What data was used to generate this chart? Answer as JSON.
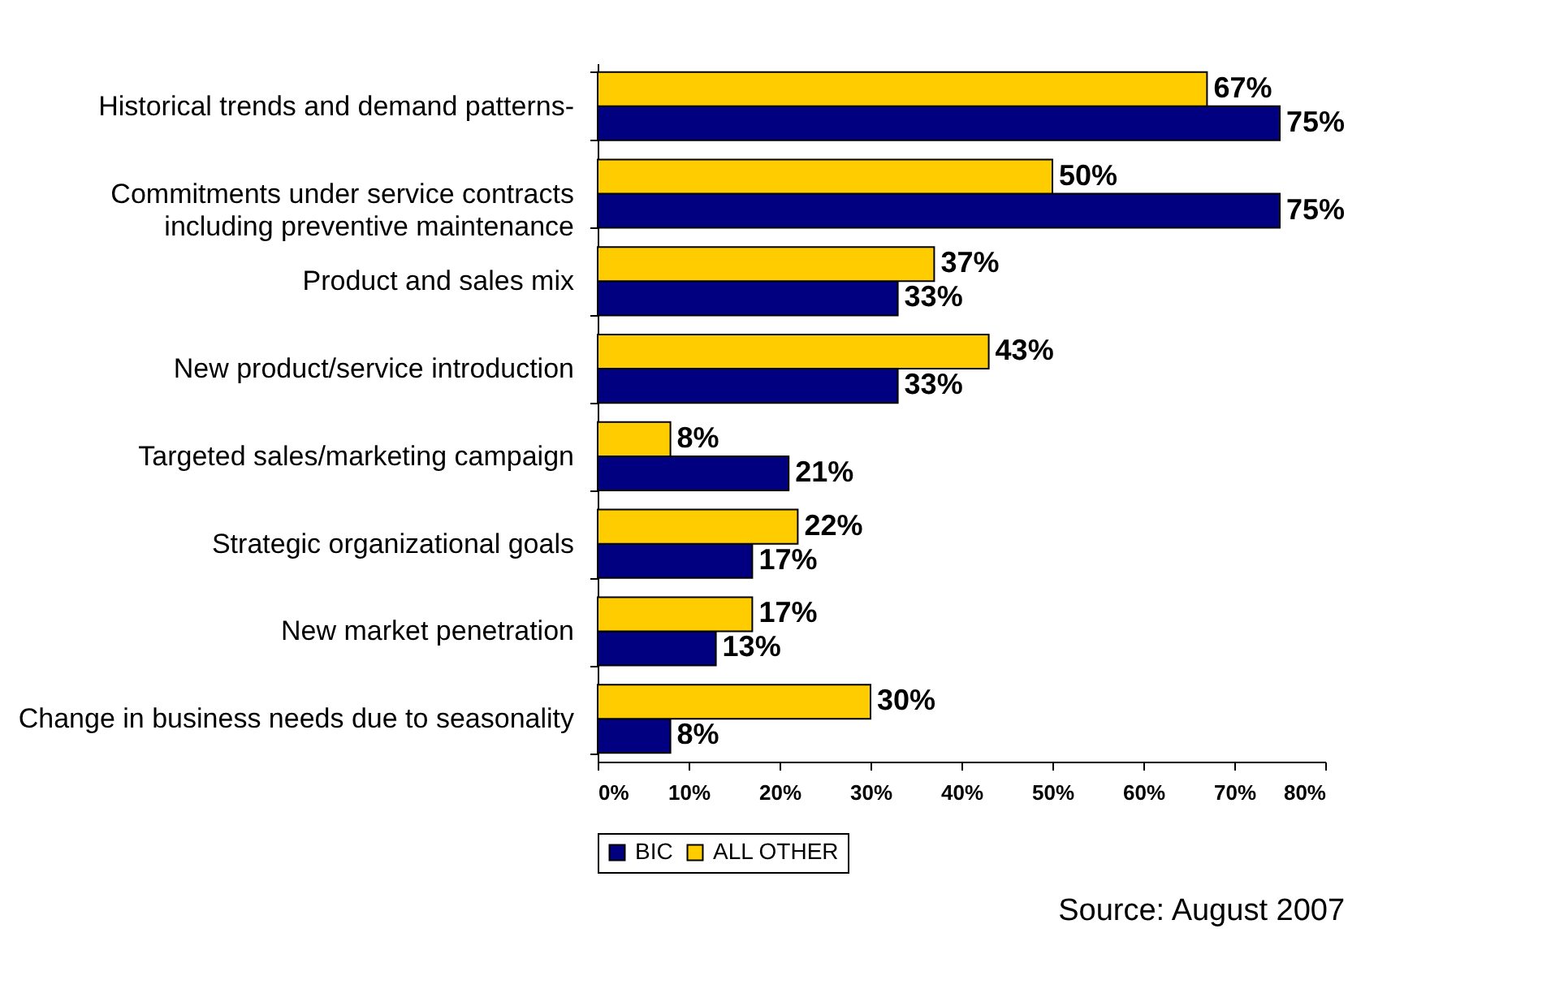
{
  "chart_data": {
    "type": "bar",
    "orientation": "horizontal",
    "categories": [
      "Historical trends and demand patterns-",
      "Commitments under service contracts\nincluding preventive maintenance",
      "Product and sales mix",
      "New product/service introduction",
      "Targeted sales/marketing campaign",
      "Strategic organizational goals",
      "New market penetration",
      "Change in business needs due to seasonality"
    ],
    "series": [
      {
        "name": "BIC",
        "color": "#000080",
        "values": [
          75,
          75,
          33,
          33,
          21,
          17,
          13,
          8
        ],
        "value_labels": [
          "75%",
          "75%",
          "33%",
          "33%",
          "21%",
          "17%",
          "13%",
          "8%"
        ]
      },
      {
        "name": "ALL OTHER",
        "color": "#ffcc00",
        "values": [
          67,
          50,
          37,
          43,
          8,
          22,
          17,
          30
        ],
        "value_labels": [
          "67%",
          "50%",
          "37%",
          "43%",
          "8%",
          "22%",
          "17%",
          "30%"
        ]
      }
    ],
    "xlim": [
      0,
      80
    ],
    "xticks": [
      {
        "value": 0,
        "label": "0%"
      },
      {
        "value": 10,
        "label": "10%"
      },
      {
        "value": 20,
        "label": "20%"
      },
      {
        "value": 30,
        "label": "30%"
      },
      {
        "value": 40,
        "label": "40%"
      },
      {
        "value": 50,
        "label": "50%"
      },
      {
        "value": 60,
        "label": "60%"
      },
      {
        "value": 70,
        "label": "70%"
      },
      {
        "value": 80,
        "label": "80%"
      }
    ],
    "grid": false,
    "legend": "bottom",
    "annotations": [
      "Source: August 2007"
    ]
  }
}
